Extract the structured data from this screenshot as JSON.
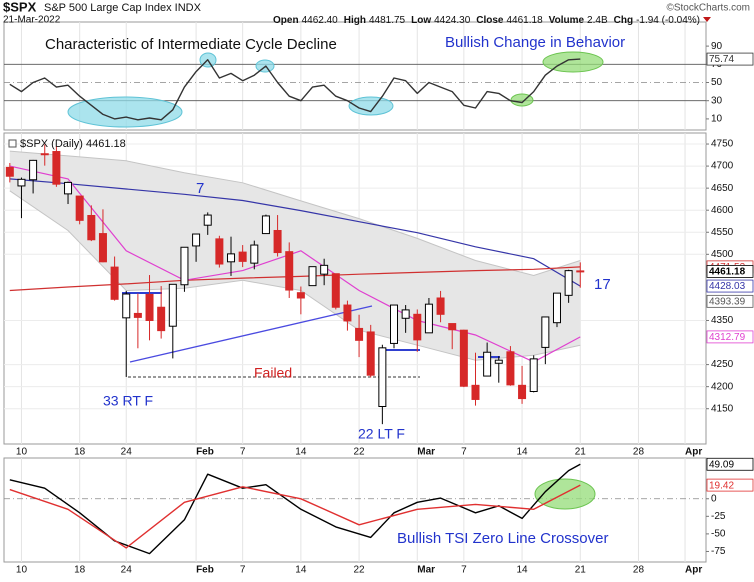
{
  "header": {
    "symbol": "$SPX",
    "name": "S&P 500 Large Cap Index INDX",
    "credit": "©StockCharts.com",
    "date": "21-Mar-2022",
    "stats": [
      {
        "label": "Open",
        "value": "4462.40"
      },
      {
        "label": "High",
        "value": "4481.75"
      },
      {
        "label": "Low",
        "value": "4424.30"
      },
      {
        "label": "Close",
        "value": "4461.18"
      },
      {
        "label": "Volume",
        "value": "2.4B"
      },
      {
        "label": "Chg",
        "value": "-1.94 (-0.04%)"
      }
    ]
  },
  "chart_data": [
    {
      "type": "line",
      "annotations": [
        "Characteristic of Intermediate Cycle Decline",
        "Bullish Change in Behavior"
      ],
      "xlim": [
        -0.5,
        59.8
      ],
      "ylim": [
        -2.2,
        116.5
      ],
      "yticks": [
        10,
        30,
        50,
        70,
        90
      ],
      "levels": [
        {
          "value": 70,
          "dash": false
        },
        {
          "value": 50,
          "dash": true
        },
        {
          "value": 30,
          "dash": false
        }
      ],
      "series": [
        {
          "color": "#333333",
          "last_label": "75.74",
          "values": [
            48,
            40,
            50,
            55,
            45,
            47,
            35,
            25,
            15,
            10,
            12,
            9,
            11,
            9,
            20,
            45,
            62,
            75,
            55,
            60,
            52,
            58,
            68,
            50,
            35,
            30,
            45,
            47,
            35,
            30,
            22,
            18,
            35,
            55,
            52,
            38,
            50,
            45,
            40,
            25,
            22,
            40,
            38,
            30,
            28,
            40,
            58,
            68,
            75,
            75.74
          ]
        }
      ]
    },
    {
      "type": "candlestick",
      "label": "$SPX (Daily) 4461.18",
      "annotations": [
        "7",
        "17",
        "Failed",
        "33 RT F",
        "22 LT F"
      ],
      "xlim": [
        -0.5,
        59.8
      ],
      "ylim": [
        4070,
        4775
      ],
      "yticks": [
        4150,
        4200,
        4250,
        4350,
        4500,
        4550,
        4600,
        4650,
        4700,
        4750
      ],
      "grid": true,
      "xticks": [
        {
          "value": 1,
          "label": "10"
        },
        {
          "value": 6,
          "label": "18"
        },
        {
          "value": 10,
          "label": "24"
        },
        {
          "value": 16,
          "label": "Feb"
        },
        {
          "value": 20,
          "label": "7"
        },
        {
          "value": 25,
          "label": "14"
        },
        {
          "value": 30,
          "label": "22"
        },
        {
          "value": 35,
          "label": "Mar"
        },
        {
          "value": 39,
          "label": "7"
        },
        {
          "value": 44,
          "label": "14"
        },
        {
          "value": 49,
          "label": "21"
        },
        {
          "value": 54,
          "label": "28"
        },
        {
          "value": 58,
          "label": "Apr"
        }
      ],
      "up_color": "#000000",
      "down_color": "#d62828",
      "open": [
        4697,
        4655,
        4669,
        4728,
        4733,
        4637,
        4632,
        4588,
        4547,
        4471,
        4356,
        4366,
        4409,
        4380,
        4337,
        4431,
        4519,
        4566,
        4535,
        4483,
        4505,
        4480,
        4547,
        4554,
        4506,
        4413,
        4429,
        4455,
        4456,
        4385,
        4332,
        4324,
        4155,
        4298,
        4355,
        4364,
        4322,
        4401,
        4343,
        4328,
        4203,
        4224,
        4253,
        4279,
        4203,
        4189,
        4289,
        4345,
        4407,
        4462.4
      ],
      "high": [
        4707,
        4674,
        4714,
        4749,
        4744,
        4665,
        4632,
        4611,
        4602,
        4495,
        4417,
        4411,
        4453,
        4428,
        4432,
        4516,
        4546,
        4595,
        4542,
        4540,
        4521,
        4531,
        4590,
        4589,
        4527,
        4427,
        4472,
        4490,
        4456,
        4395,
        4363,
        4340,
        4295,
        4385,
        4385,
        4375,
        4401,
        4417,
        4343,
        4329,
        4277,
        4300,
        4269,
        4292,
        4247,
        4271,
        4358,
        4412,
        4465,
        4481.75
      ],
      "low": [
        4663,
        4582,
        4638,
        4701,
        4653,
        4614,
        4568,
        4530,
        4482,
        4395,
        4222,
        4287,
        4305,
        4309,
        4264,
        4415,
        4483,
        4544,
        4470,
        4451,
        4471,
        4466,
        4547,
        4495,
        4401,
        4364,
        4429,
        4430,
        4375,
        4327,
        4267,
        4221,
        4115,
        4287,
        4322,
        4279,
        4322,
        4346,
        4285,
        4199,
        4157,
        4224,
        4209,
        4202,
        4161,
        4187,
        4251,
        4335,
        4390,
        4424.3
      ],
      "close": [
        4677,
        4670,
        4713,
        4726,
        4659,
        4663,
        4577,
        4533,
        4483,
        4398,
        4410,
        4357,
        4350,
        4327,
        4432,
        4516,
        4546,
        4589,
        4478,
        4501,
        4484,
        4521,
        4587,
        4504,
        4419,
        4401,
        4472,
        4475,
        4380,
        4349,
        4305,
        4226,
        4288,
        4385,
        4374,
        4306,
        4387,
        4364,
        4329,
        4201,
        4171,
        4278,
        4260,
        4204,
        4173,
        4263,
        4358,
        4412,
        4463,
        4461.18
      ],
      "band": {
        "color": "#e6e6e6",
        "edge": "#c4c4c4",
        "x": [
          0,
          5,
          10,
          15,
          20,
          25,
          30,
          35,
          40,
          45,
          49
        ],
        "upper": [
          4734,
          4723,
          4712,
          4685,
          4662,
          4621,
          4581,
          4536,
          4486,
          4452,
          4486
        ],
        "lower": [
          4644,
          4554,
          4418,
          4423,
          4441,
          4418,
          4328,
          4294,
          4260,
          4271,
          4294
        ]
      },
      "overlays": [
        {
          "color": "#3535a8",
          "x": [
            0,
            5,
            10,
            15,
            20,
            25,
            30,
            35,
            40,
            45,
            49
          ],
          "values": [
            4671,
            4660,
            4648,
            4636,
            4622,
            4599,
            4574,
            4549,
            4517,
            4490,
            4428.03
          ],
          "last_label": "4428.03"
        },
        {
          "color": "#d03030",
          "x": [
            0,
            5,
            10,
            15,
            20,
            25,
            30,
            35,
            40,
            45,
            49
          ],
          "values": [
            4418,
            4426,
            4433,
            4441,
            4446,
            4450,
            4455,
            4459,
            4463,
            4466,
            4471.53
          ],
          "last_label": "4471.53"
        },
        {
          "color": "#e040d0",
          "x": [
            0,
            5,
            10,
            15,
            20,
            25,
            30,
            35,
            40,
            45,
            49
          ],
          "values": [
            4700,
            4671,
            4508,
            4441,
            4463,
            4508,
            4418,
            4350,
            4317,
            4256,
            4312.79
          ],
          "last_label": "4312.79"
        }
      ],
      "price_labels": [
        {
          "value": 4393.39,
          "label": "4393.39",
          "color": "#555555"
        },
        {
          "value": 4461.18,
          "label": "4461.18",
          "color": "#000000"
        }
      ]
    },
    {
      "type": "line",
      "annotations": [
        "Bullish TSI Zero Line Crossover"
      ],
      "xlim": [
        -0.5,
        59.8
      ],
      "ylim": [
        -90,
        58
      ],
      "yticks": [
        -75,
        -50,
        -25,
        0
      ],
      "xticks": [
        {
          "value": 1,
          "label": "10"
        },
        {
          "value": 6,
          "label": "18"
        },
        {
          "value": 10,
          "label": "24"
        },
        {
          "value": 16,
          "label": "Feb"
        },
        {
          "value": 20,
          "label": "7"
        },
        {
          "value": 25,
          "label": "14"
        },
        {
          "value": 30,
          "label": "22"
        },
        {
          "value": 35,
          "label": "Mar"
        },
        {
          "value": 39,
          "label": "7"
        },
        {
          "value": 44,
          "label": "14"
        },
        {
          "value": 49,
          "label": "21"
        },
        {
          "value": 54,
          "label": "28"
        },
        {
          "value": 58,
          "label": "Apr"
        }
      ],
      "levels": [
        {
          "value": 0,
          "dash": true
        }
      ],
      "series": [
        {
          "color": "#000000",
          "last_label": "49.09",
          "x": [
            0,
            3,
            6,
            9,
            12,
            15,
            17,
            20,
            22,
            25,
            28,
            31,
            33,
            35,
            37,
            40,
            42,
            44,
            46,
            48,
            49
          ],
          "values": [
            27,
            15,
            -20,
            -60,
            -78,
            -30,
            35,
            15,
            20,
            -15,
            -40,
            -55,
            -20,
            -5,
            1,
            -20,
            -10,
            -28,
            10,
            40,
            49.09
          ]
        },
        {
          "color": "#e03030",
          "last_label": "19.42",
          "x": [
            0,
            5,
            10,
            15,
            20,
            25,
            30,
            35,
            40,
            45,
            49
          ],
          "values": [
            13,
            -15,
            -70,
            -5,
            17,
            0,
            -37,
            -15,
            -8,
            -15,
            19.42
          ]
        }
      ]
    }
  ]
}
